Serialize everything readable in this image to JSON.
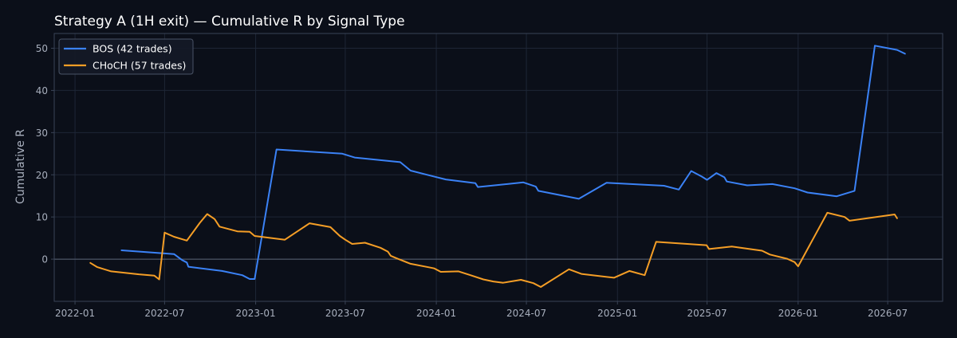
{
  "colors": {
    "background": "#0b0f19",
    "plot_background": "#0b0f19",
    "grid": "#1e2636",
    "axis": "#3a4356",
    "zero_line": "#5a6375",
    "text": "#ffffff",
    "tick_text": "#a8afbd",
    "bos": "#3b82f6",
    "choch": "#f59e26"
  },
  "chart_data": {
    "type": "line",
    "title": "Strategy A (1H exit) — Cumulative R by Signal Type",
    "xlabel": "",
    "ylabel": "Cumulative R",
    "x_type": "date",
    "xlim": [
      "2021-11-20",
      "2026-10-20"
    ],
    "ylim": [
      -10,
      53.5
    ],
    "x_ticks": [
      {
        "date": "2022-01-01",
        "label": "2022-01"
      },
      {
        "date": "2022-07-01",
        "label": "2022-07"
      },
      {
        "date": "2023-01-01",
        "label": "2023-01"
      },
      {
        "date": "2023-07-01",
        "label": "2023-07"
      },
      {
        "date": "2024-01-01",
        "label": "2024-01"
      },
      {
        "date": "2024-07-01",
        "label": "2024-07"
      },
      {
        "date": "2025-01-01",
        "label": "2025-01"
      },
      {
        "date": "2025-07-01",
        "label": "2025-07"
      },
      {
        "date": "2026-01-01",
        "label": "2026-01"
      },
      {
        "date": "2026-07-01",
        "label": "2026-07"
      }
    ],
    "y_ticks": [
      0,
      10,
      20,
      30,
      40,
      50
    ],
    "grid": true,
    "zero_line": true,
    "legend": "top-left",
    "series": [
      {
        "name": "BOS (42 trades)",
        "color_key": "bos",
        "points": [
          [
            "2022-04-05",
            2.1
          ],
          [
            "2022-07-20",
            1.2
          ],
          [
            "2022-08-05",
            -0.2
          ],
          [
            "2022-08-15",
            -0.8
          ],
          [
            "2022-08-18",
            -1.8
          ],
          [
            "2022-10-25",
            -2.8
          ],
          [
            "2022-12-05",
            -3.8
          ],
          [
            "2022-12-20",
            -4.7
          ],
          [
            "2022-12-30",
            -4.7
          ],
          [
            "2023-02-12",
            26.0
          ],
          [
            "2023-06-25",
            25.0
          ],
          [
            "2023-07-20",
            24.1
          ],
          [
            "2023-10-20",
            23.0
          ],
          [
            "2023-11-10",
            21.0
          ],
          [
            "2023-12-20",
            19.8
          ],
          [
            "2024-01-20",
            18.9
          ],
          [
            "2024-03-20",
            18.0
          ],
          [
            "2024-03-25",
            17.1
          ],
          [
            "2024-06-25",
            18.2
          ],
          [
            "2024-07-20",
            17.2
          ],
          [
            "2024-07-25",
            16.2
          ],
          [
            "2024-10-15",
            14.3
          ],
          [
            "2024-12-10",
            18.1
          ],
          [
            "2025-04-05",
            17.4
          ],
          [
            "2025-05-05",
            16.5
          ],
          [
            "2025-05-30",
            20.9
          ],
          [
            "2025-06-20",
            19.6
          ],
          [
            "2025-07-01",
            18.8
          ],
          [
            "2025-07-20",
            20.4
          ],
          [
            "2025-08-05",
            19.4
          ],
          [
            "2025-08-10",
            18.4
          ],
          [
            "2025-09-20",
            17.5
          ],
          [
            "2025-11-10",
            17.8
          ],
          [
            "2025-12-25",
            16.8
          ],
          [
            "2026-01-20",
            15.8
          ],
          [
            "2026-03-20",
            14.9
          ],
          [
            "2026-04-25",
            16.2
          ],
          [
            "2026-06-05",
            50.6
          ],
          [
            "2026-07-20",
            49.6
          ],
          [
            "2026-08-05",
            48.7
          ]
        ]
      },
      {
        "name": "CHoCH (57 trades)",
        "color_key": "choch",
        "points": [
          [
            "2022-02-01",
            -0.9
          ],
          [
            "2022-02-15",
            -1.9
          ],
          [
            "2022-03-15",
            -2.9
          ],
          [
            "2022-05-10",
            -3.6
          ],
          [
            "2022-06-10",
            -3.9
          ],
          [
            "2022-06-20",
            -4.8
          ],
          [
            "2022-07-01",
            6.3
          ],
          [
            "2022-07-20",
            5.3
          ],
          [
            "2022-08-15",
            4.4
          ],
          [
            "2022-09-10",
            8.6
          ],
          [
            "2022-09-25",
            10.7
          ],
          [
            "2022-10-10",
            9.5
          ],
          [
            "2022-10-20",
            7.7
          ],
          [
            "2022-11-25",
            6.6
          ],
          [
            "2022-12-20",
            6.5
          ],
          [
            "2022-12-30",
            5.5
          ],
          [
            "2023-03-01",
            4.6
          ],
          [
            "2023-04-20",
            8.5
          ],
          [
            "2023-06-01",
            7.6
          ],
          [
            "2023-06-20",
            5.5
          ],
          [
            "2023-07-01",
            4.6
          ],
          [
            "2023-07-15",
            3.6
          ],
          [
            "2023-08-10",
            3.9
          ],
          [
            "2023-09-10",
            2.7
          ],
          [
            "2023-09-25",
            1.8
          ],
          [
            "2023-10-01",
            0.8
          ],
          [
            "2023-10-15",
            0.1
          ],
          [
            "2023-11-10",
            -1.1
          ],
          [
            "2023-12-20",
            -2.0
          ],
          [
            "2023-12-28",
            -2.2
          ],
          [
            "2024-01-10",
            -3.0
          ],
          [
            "2024-02-15",
            -2.9
          ],
          [
            "2024-03-10",
            -3.8
          ],
          [
            "2024-04-05",
            -4.8
          ],
          [
            "2024-04-25",
            -5.3
          ],
          [
            "2024-05-15",
            -5.6
          ],
          [
            "2024-06-20",
            -4.9
          ],
          [
            "2024-07-15",
            -5.7
          ],
          [
            "2024-07-30",
            -6.6
          ],
          [
            "2024-09-25",
            -2.4
          ],
          [
            "2024-10-20",
            -3.5
          ],
          [
            "2024-12-25",
            -4.4
          ],
          [
            "2025-01-25",
            -2.8
          ],
          [
            "2025-02-25",
            -3.8
          ],
          [
            "2025-03-20",
            4.1
          ],
          [
            "2025-06-30",
            3.3
          ],
          [
            "2025-07-05",
            2.4
          ],
          [
            "2025-08-20",
            3.0
          ],
          [
            "2025-10-20",
            2.0
          ],
          [
            "2025-11-05",
            1.1
          ],
          [
            "2025-12-10",
            0.1
          ],
          [
            "2025-12-25",
            -0.7
          ],
          [
            "2026-01-01",
            -1.7
          ],
          [
            "2026-03-01",
            11.0
          ],
          [
            "2026-04-05",
            10.0
          ],
          [
            "2026-04-15",
            9.1
          ],
          [
            "2026-07-15",
            10.6
          ],
          [
            "2026-07-20",
            9.7
          ]
        ]
      }
    ]
  }
}
